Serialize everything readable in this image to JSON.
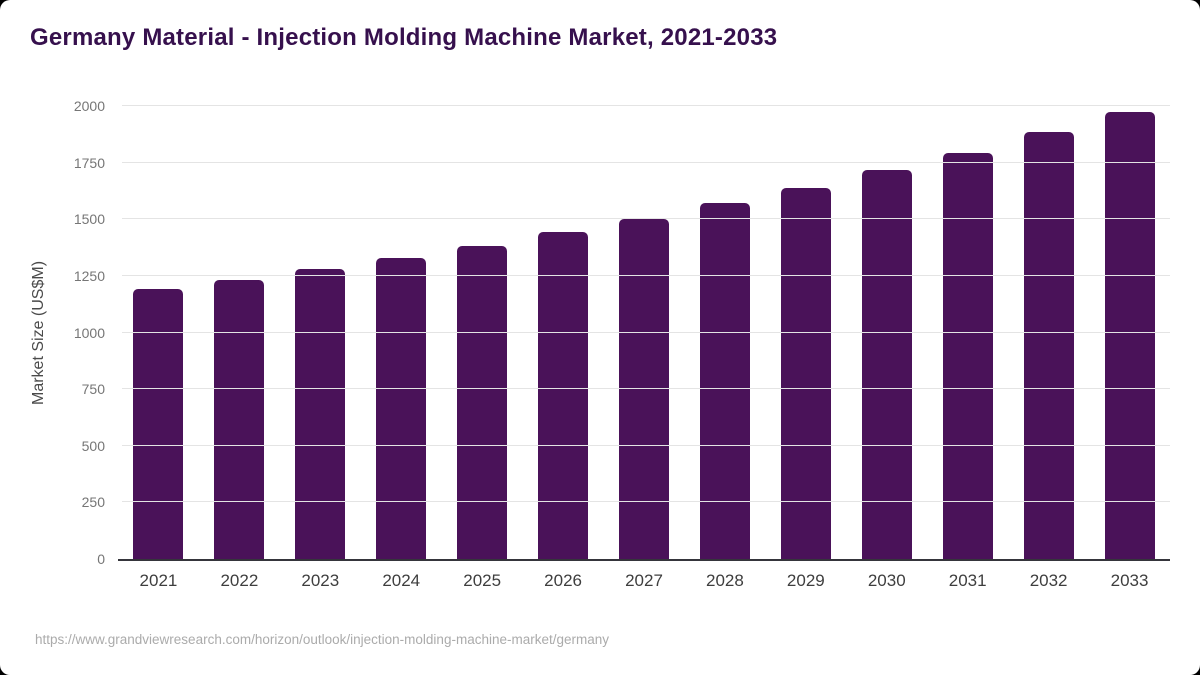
{
  "page": {
    "title": "Germany Material - Injection Molding Machine Market, 2021-2033",
    "source_url": "https://www.grandviewresearch.com/horizon/outlook/injection-molding-machine-market/germany"
  },
  "colors": {
    "bar": "#4a1259",
    "title": "#36104d",
    "gridline": "#e4e4e4",
    "axis_line": "#35353b",
    "y_tick_text": "#767676",
    "x_tick_text": "#3e3e3e",
    "source_text": "#ababab",
    "background": "#ffffff",
    "outer_background": "#000000"
  },
  "chart_data": {
    "type": "bar",
    "title": "Germany Material - Injection Molding Machine Market, 2021-2033",
    "categories": [
      "2021",
      "2022",
      "2023",
      "2024",
      "2025",
      "2026",
      "2027",
      "2028",
      "2029",
      "2030",
      "2031",
      "2032",
      "2033"
    ],
    "values": [
      1190,
      1234,
      1281,
      1329,
      1384,
      1442,
      1503,
      1571,
      1640,
      1716,
      1793,
      1884,
      1974
    ],
    "xlabel": "",
    "ylabel": "Market Size (US$M)",
    "ylim": [
      0,
      2000
    ],
    "yticks": [
      0,
      250,
      500,
      750,
      1000,
      1250,
      1500,
      1750,
      2000
    ],
    "grid": true,
    "legend": false,
    "bar_color": "#4a1259"
  }
}
